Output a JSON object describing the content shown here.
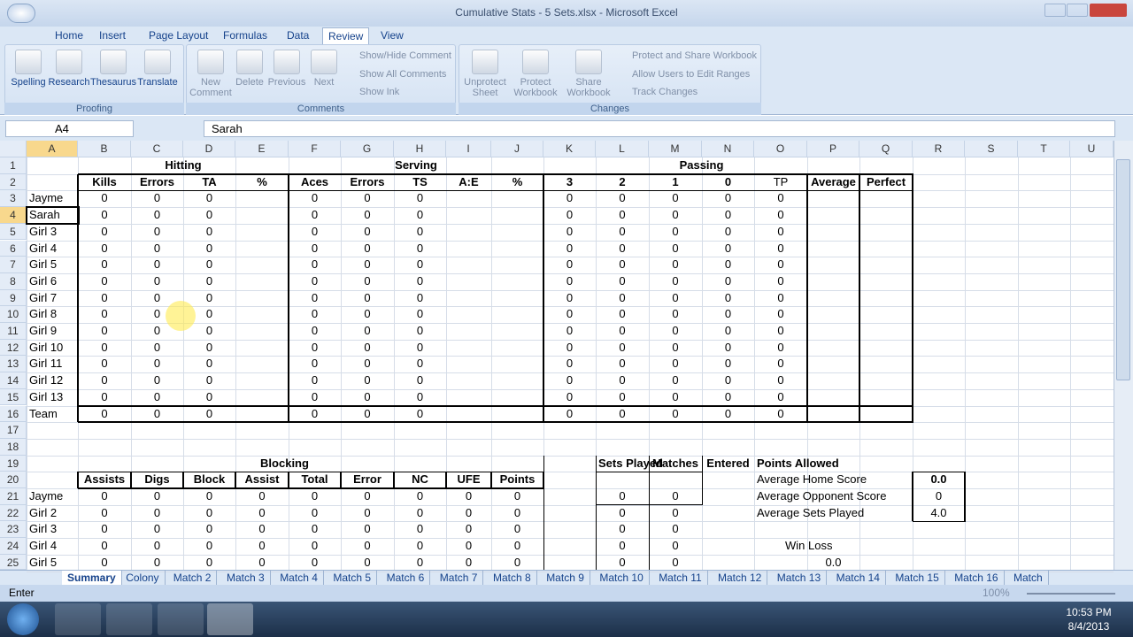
{
  "window": {
    "title": "Cumulative Stats - 5 Sets.xlsx - Microsoft Excel"
  },
  "tabs": [
    "Home",
    "Insert",
    "Page Layout",
    "Formulas",
    "Data",
    "Review",
    "View"
  ],
  "active_tab": "Review",
  "ribbon": {
    "groups": [
      {
        "label": "Proofing",
        "buttons": [
          "Spelling",
          "Research",
          "Thesaurus",
          "Translate"
        ],
        "small": []
      },
      {
        "label": "Comments",
        "buttons": [
          "New Comment",
          "Delete",
          "Previous",
          "Next"
        ],
        "small": [
          "Show/Hide Comment",
          "Show All Comments",
          "Show Ink"
        ]
      },
      {
        "label": "Changes",
        "buttons": [
          "Unprotect Sheet",
          "Protect Workbook",
          "Share Workbook"
        ],
        "small": [
          "Protect and Share Workbook",
          "Allow Users to Edit Ranges",
          "Track Changes"
        ]
      }
    ]
  },
  "formula_bar": {
    "name_box": "A4",
    "formula": "Sarah"
  },
  "sheet": {
    "columns": [
      "A",
      "B",
      "C",
      "D",
      "E",
      "F",
      "G",
      "H",
      "I",
      "J",
      "K",
      "L",
      "M",
      "N",
      "O",
      "P",
      "Q",
      "R",
      "S",
      "T",
      "U"
    ],
    "row_headers": [
      1,
      2,
      3,
      4,
      5,
      6,
      7,
      8,
      9,
      10,
      11,
      12,
      13,
      14,
      15,
      16,
      17,
      18,
      19,
      20,
      21,
      22,
      23,
      24,
      25
    ],
    "rows": [
      [
        null,
        "Hitting",
        null,
        null,
        null,
        "Serving",
        null,
        null,
        null,
        null,
        "Passing",
        null,
        null,
        null,
        null,
        null,
        null,
        null,
        null,
        null,
        null
      ],
      [
        null,
        "Kills",
        "Errors",
        "TA",
        "%",
        "Aces",
        "Errors",
        "TS",
        "A:E",
        "%",
        "3",
        "2",
        "1",
        "0",
        "TP",
        "Average",
        "Perfect",
        null,
        null,
        null,
        null
      ],
      [
        "Jayme",
        0,
        0,
        0,
        null,
        0,
        0,
        0,
        null,
        null,
        0,
        0,
        0,
        0,
        0,
        null,
        null,
        null,
        null,
        null,
        null
      ],
      [
        "Sarah",
        0,
        0,
        0,
        null,
        0,
        0,
        0,
        null,
        null,
        0,
        0,
        0,
        0,
        0,
        null,
        null,
        null,
        null,
        null,
        null
      ],
      [
        "Girl 3",
        0,
        0,
        0,
        null,
        0,
        0,
        0,
        null,
        null,
        0,
        0,
        0,
        0,
        0,
        null,
        null,
        null,
        null,
        null,
        null
      ],
      [
        "Girl 4",
        0,
        0,
        0,
        null,
        0,
        0,
        0,
        null,
        null,
        0,
        0,
        0,
        0,
        0,
        null,
        null,
        null,
        null,
        null,
        null
      ],
      [
        "Girl 5",
        0,
        0,
        0,
        null,
        0,
        0,
        0,
        null,
        null,
        0,
        0,
        0,
        0,
        0,
        null,
        null,
        null,
        null,
        null,
        null
      ],
      [
        "Girl 6",
        0,
        0,
        0,
        null,
        0,
        0,
        0,
        null,
        null,
        0,
        0,
        0,
        0,
        0,
        null,
        null,
        null,
        null,
        null,
        null
      ],
      [
        "Girl 7",
        0,
        0,
        0,
        null,
        0,
        0,
        0,
        null,
        null,
        0,
        0,
        0,
        0,
        0,
        null,
        null,
        null,
        null,
        null,
        null
      ],
      [
        "Girl 8",
        0,
        0,
        0,
        null,
        0,
        0,
        0,
        null,
        null,
        0,
        0,
        0,
        0,
        0,
        null,
        null,
        null,
        null,
        null,
        null
      ],
      [
        "Girl 9",
        0,
        0,
        0,
        null,
        0,
        0,
        0,
        null,
        null,
        0,
        0,
        0,
        0,
        0,
        null,
        null,
        null,
        null,
        null,
        null
      ],
      [
        "Girl 10",
        0,
        0,
        0,
        null,
        0,
        0,
        0,
        null,
        null,
        0,
        0,
        0,
        0,
        0,
        null,
        null,
        null,
        null,
        null,
        null
      ],
      [
        "Girl 11",
        0,
        0,
        0,
        null,
        0,
        0,
        0,
        null,
        null,
        0,
        0,
        0,
        0,
        0,
        null,
        null,
        null,
        null,
        null,
        null
      ],
      [
        "Girl 12",
        0,
        0,
        0,
        null,
        0,
        0,
        0,
        null,
        null,
        0,
        0,
        0,
        0,
        0,
        null,
        null,
        null,
        null,
        null,
        null
      ],
      [
        "Girl 13",
        0,
        0,
        0,
        null,
        0,
        0,
        0,
        null,
        null,
        0,
        0,
        0,
        0,
        0,
        null,
        null,
        null,
        null,
        null,
        null
      ],
      [
        "Team",
        0,
        0,
        0,
        null,
        0,
        0,
        0,
        null,
        null,
        0,
        0,
        0,
        0,
        0,
        null,
        null,
        null,
        null,
        null,
        null
      ],
      [
        null,
        null,
        null,
        null,
        null,
        null,
        null,
        null,
        null,
        null,
        null,
        null,
        null,
        null,
        null,
        null,
        null,
        null,
        null,
        null,
        null
      ],
      [
        null,
        null,
        null,
        null,
        null,
        null,
        null,
        null,
        null,
        null,
        null,
        null,
        null,
        null,
        null,
        null,
        null,
        null,
        null,
        null,
        null
      ],
      [
        null,
        "Blocking",
        null,
        null,
        null,
        null,
        null,
        null,
        null,
        null,
        null,
        "Sets Played",
        "Matches",
        "Entered",
        "Points Allowed",
        null,
        null,
        null,
        null,
        null,
        null
      ],
      [
        null,
        "Assists",
        "Digs",
        "Block",
        "Assist",
        "Total",
        "Error",
        "NC",
        "UFE",
        "Points",
        null,
        null,
        null,
        null,
        "Average Home Score",
        null,
        null,
        "0.0",
        null,
        null,
        null
      ],
      [
        "Jayme",
        0,
        0,
        0,
        0,
        0,
        0,
        0,
        0,
        0,
        null,
        0,
        0,
        null,
        "Average Opponent Score",
        null,
        null,
        0,
        null,
        null,
        null
      ],
      [
        "Girl 2",
        0,
        0,
        0,
        0,
        0,
        0,
        0,
        0,
        0,
        null,
        0,
        0,
        null,
        "Average Sets Played",
        null,
        null,
        "4.0",
        null,
        null,
        null
      ],
      [
        "Girl 3",
        0,
        0,
        0,
        0,
        0,
        0,
        0,
        0,
        0,
        null,
        0,
        0,
        null,
        null,
        null,
        null,
        null,
        null,
        null,
        null
      ],
      [
        "Girl 4",
        0,
        0,
        0,
        0,
        0,
        0,
        0,
        0,
        0,
        null,
        0,
        0,
        null,
        "Win Loss",
        null,
        null,
        null,
        null,
        null,
        null
      ],
      [
        "Girl 5",
        0,
        0,
        0,
        0,
        0,
        0,
        0,
        0,
        0,
        null,
        0,
        0,
        null,
        null,
        "0.0",
        null,
        null,
        null,
        null,
        null
      ]
    ]
  },
  "sheet_tabs": [
    "Summary",
    "Colony",
    "Match 2",
    "Match 3",
    "Match 4",
    "Match 5",
    "Match 6",
    "Match 7",
    "Match 8",
    "Match 9",
    "Match 10",
    "Match 11",
    "Match 12",
    "Match 13",
    "Match 14",
    "Match 15",
    "Match 16",
    "Match"
  ],
  "active_sheet": "Summary",
  "status_bar": {
    "mode": "Enter",
    "zoom": "100%"
  },
  "taskbar": {
    "time": "10:53 PM",
    "date": "8/4/2013"
  }
}
